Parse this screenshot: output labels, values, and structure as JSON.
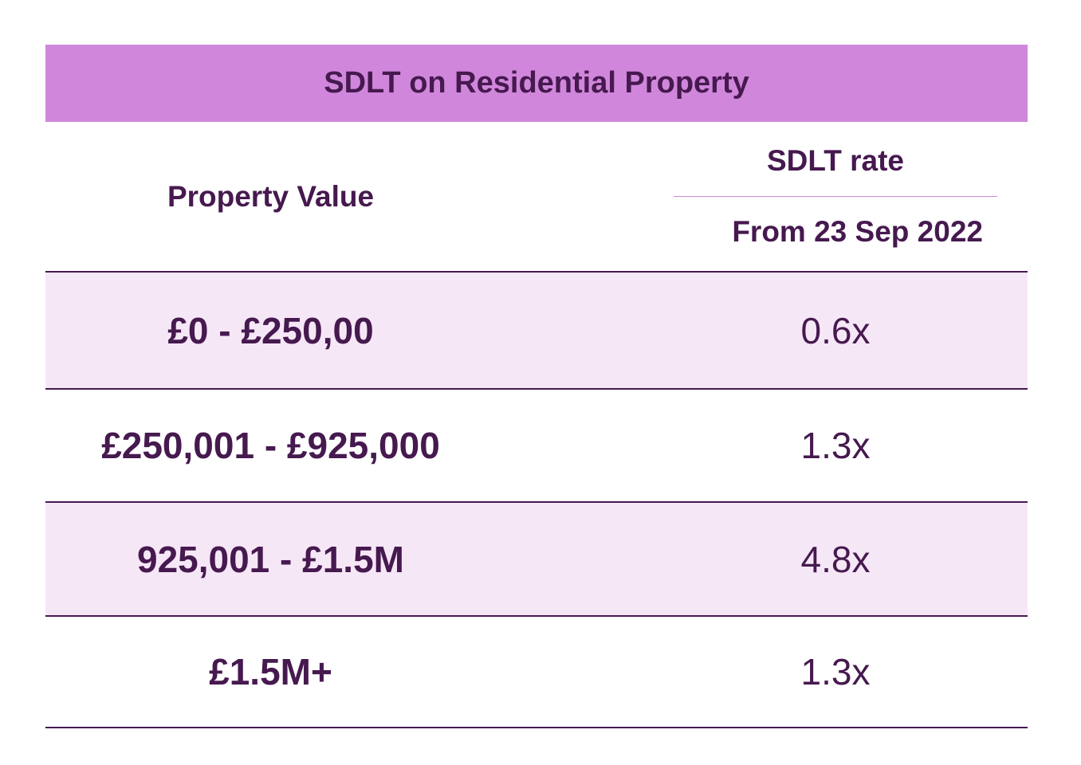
{
  "title": "SDLT on Residential Property",
  "header": {
    "property_value": "Property Value",
    "sdlt_rate": "SDLT rate",
    "from_date": "From 23 Sep 2022"
  },
  "rows": [
    {
      "value": "£0 - £250,00",
      "rate": "0.6x"
    },
    {
      "value": "£250,001 - £925,000",
      "rate": "1.3x"
    },
    {
      "value": "925,001 - £1.5M",
      "rate": "4.8x"
    },
    {
      "value": "£1.5M+",
      "rate": "1.3x"
    }
  ],
  "colors": {
    "title_bg": "#d087db",
    "text": "#46194f",
    "shaded_row": "#f6e7f7",
    "divider": "#c98bd3"
  }
}
